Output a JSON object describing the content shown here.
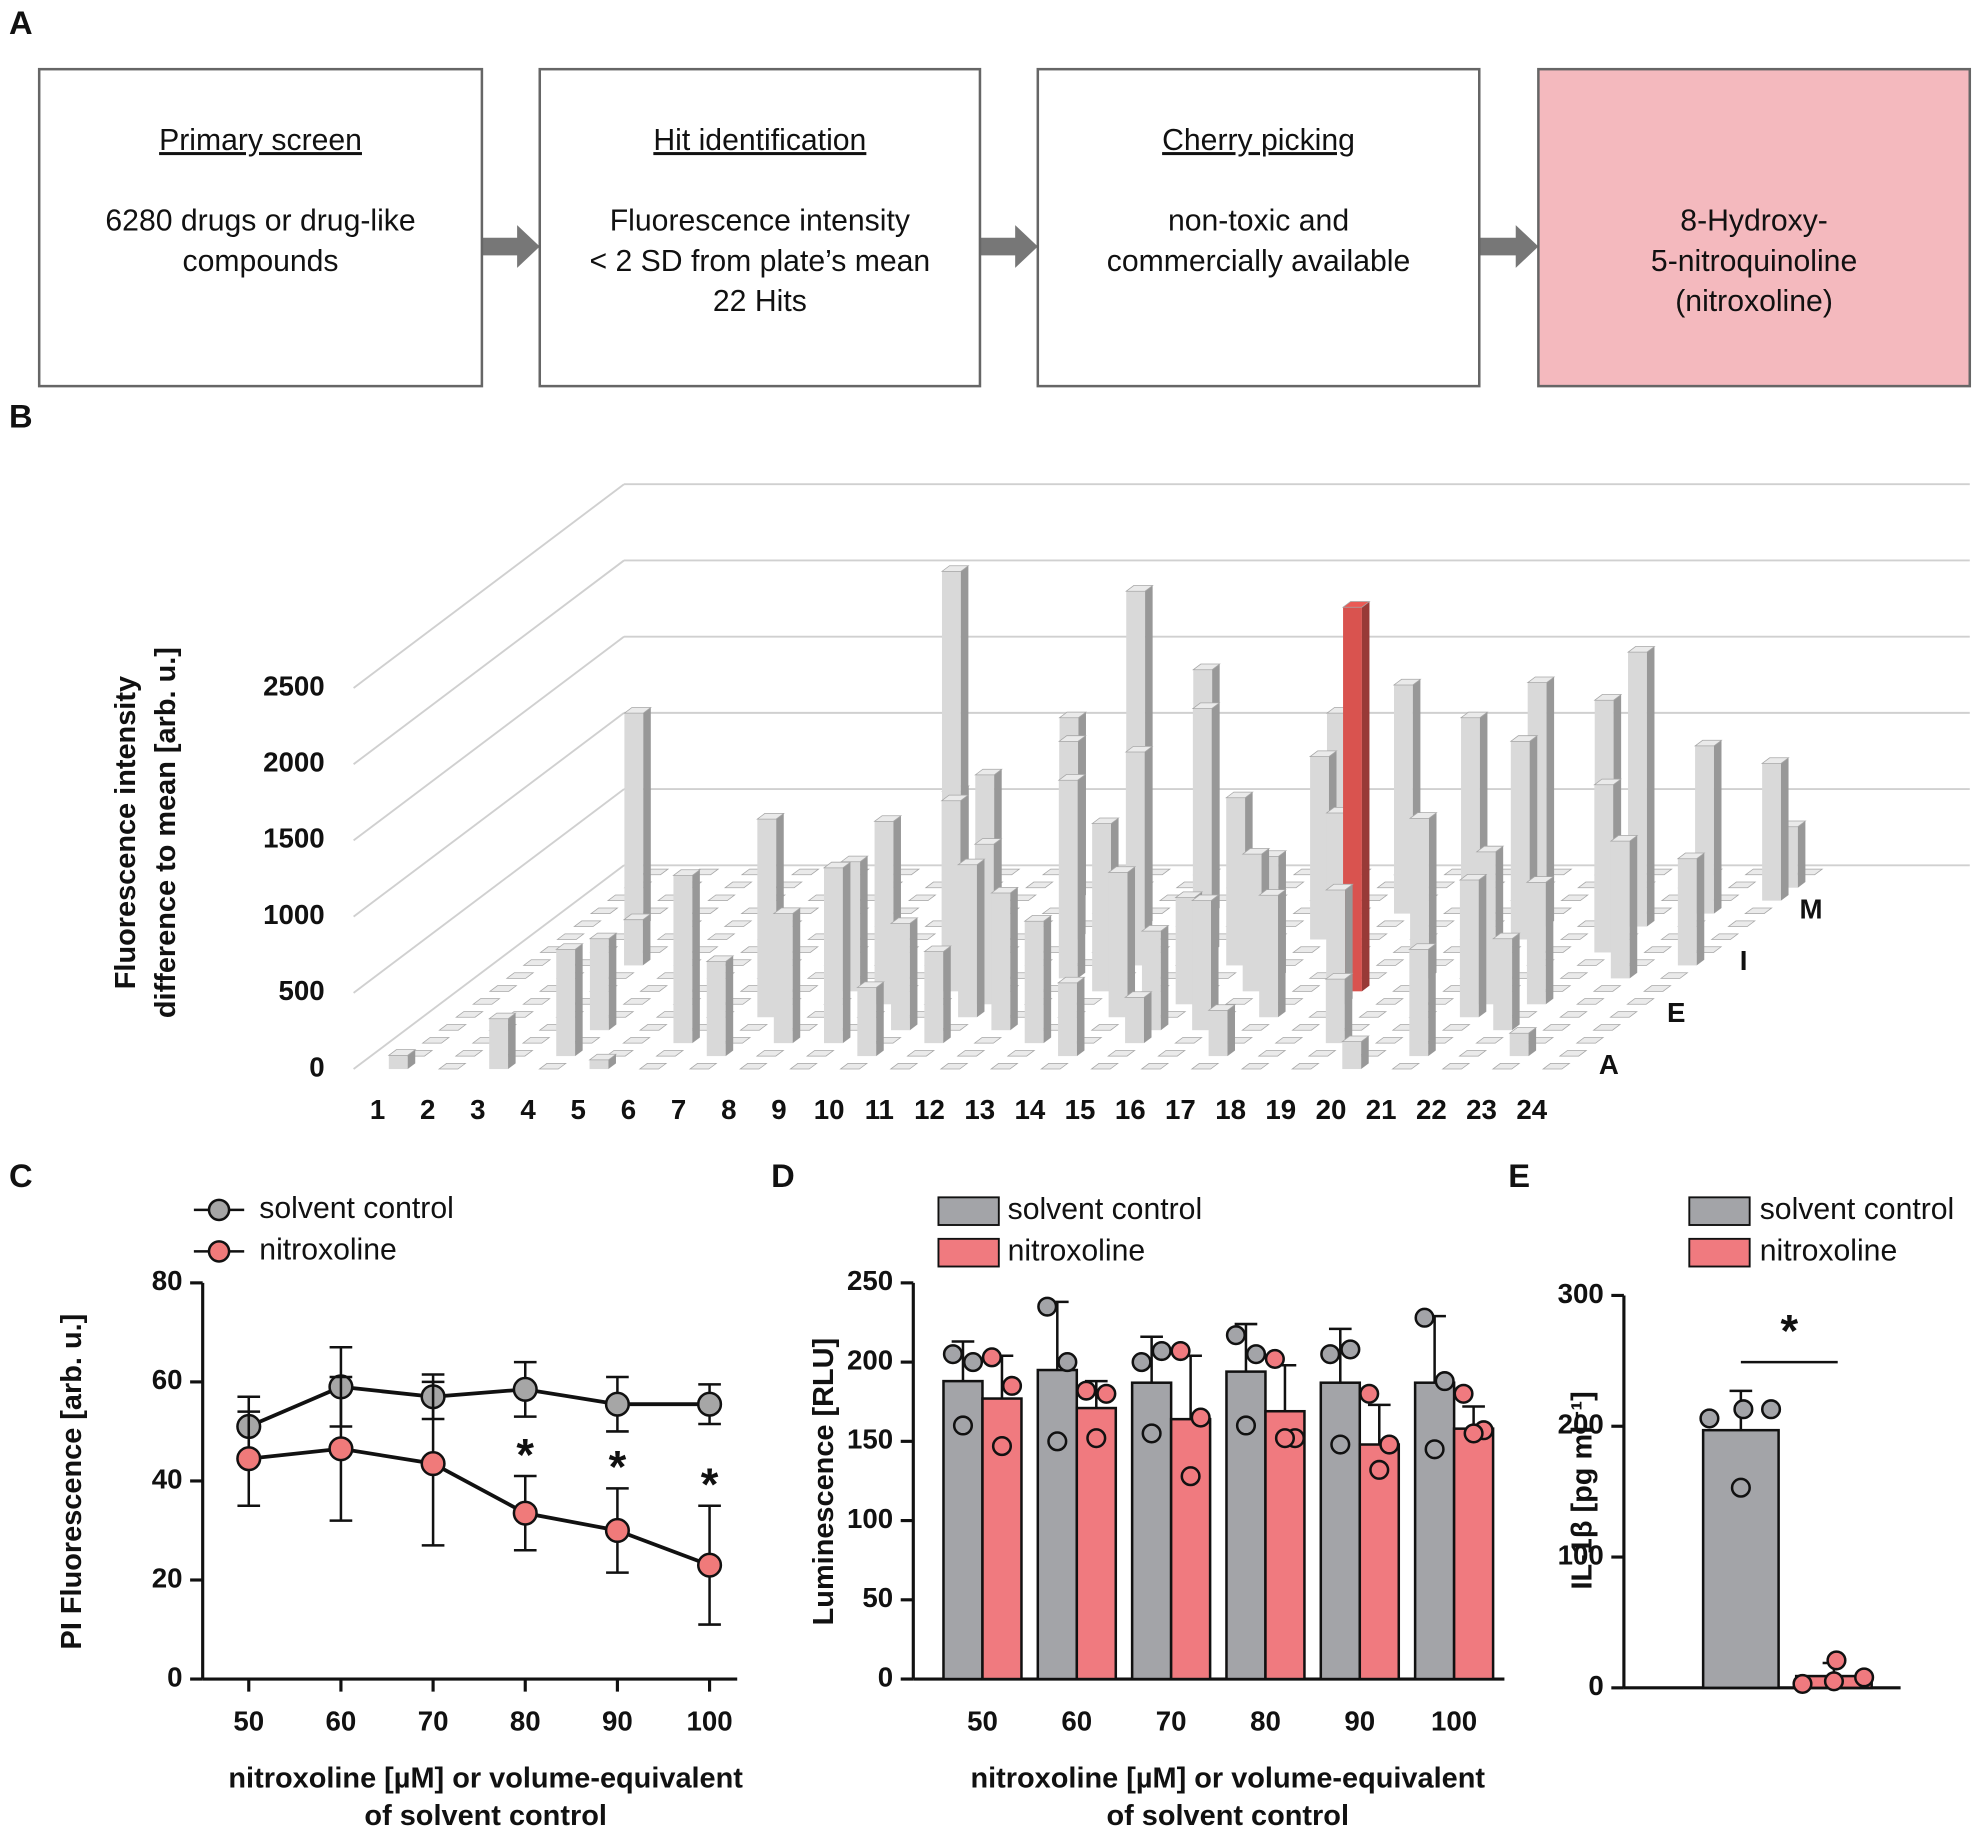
{
  "panel_a": {
    "label": "A",
    "steps": [
      {
        "title": "Primary screen",
        "lines": [
          "6280 drugs or drug-like",
          "compounds"
        ],
        "color": "#ffffff"
      },
      {
        "title": "Hit identification",
        "lines": [
          "Fluorescence intensity",
          "< 2 SD from plate’s mean",
          "22 Hits"
        ],
        "color": "#ffffff"
      },
      {
        "title": "Cherry picking",
        "lines": [
          "non-toxic and",
          "commercially available"
        ],
        "color": "#ffffff"
      },
      {
        "lines": [
          "8-Hydroxy-",
          "5-nitroquinoline",
          "(nitroxoline)"
        ],
        "color": "#f4b9be"
      }
    ]
  },
  "chart_data": [
    {
      "type": "bar3d",
      "panel": "B",
      "y_label": [
        "Fluorescence intensity",
        "difference to mean [arb. u.]"
      ],
      "categories": [
        "1",
        "2",
        "3",
        "4",
        "5",
        "6",
        "7",
        "8",
        "9",
        "10",
        "11",
        "12",
        "13",
        "14",
        "15",
        "16",
        "17",
        "18",
        "19",
        "20",
        "21",
        "22",
        "23",
        "24"
      ],
      "rows": [
        "A",
        null,
        null,
        null,
        "E",
        null,
        null,
        null,
        "I",
        null,
        null,
        null,
        "M",
        null,
        null,
        null
      ],
      "values": [
        [
          90,
          0,
          330,
          0,
          60,
          0,
          0,
          0,
          0,
          0,
          0,
          0,
          0,
          0,
          0,
          0,
          0,
          0,
          0,
          180,
          0,
          0,
          0,
          0
        ],
        [
          0,
          0,
          0,
          700,
          0,
          0,
          620,
          0,
          0,
          450,
          0,
          0,
          0,
          480,
          0,
          0,
          300,
          0,
          0,
          0,
          700,
          0,
          150,
          0
        ],
        [
          0,
          0,
          0,
          0,
          0,
          1100,
          0,
          850,
          1150,
          0,
          600,
          0,
          800,
          0,
          300,
          0,
          0,
          0,
          420,
          0,
          0,
          0,
          0,
          0
        ],
        [
          0,
          0,
          0,
          600,
          0,
          0,
          0,
          0,
          0,
          700,
          0,
          900,
          0,
          0,
          650,
          850,
          0,
          0,
          0,
          0,
          0,
          600,
          0,
          0
        ],
        [
          0,
          0,
          0,
          0,
          0,
          0,
          1300,
          0,
          0,
          0,
          1000,
          0,
          0,
          950,
          0,
          0,
          800,
          0,
          0,
          0,
          900,
          0,
          0,
          0
        ],
        [
          0,
          0,
          0,
          0,
          0,
          0,
          0,
          0,
          1200,
          0,
          1050,
          0,
          0,
          0,
          700,
          0,
          0,
          750,
          0,
          0,
          1000,
          800,
          0,
          0
        ],
        [
          0,
          0,
          0,
          0,
          0,
          0,
          0,
          850,
          0,
          1250,
          0,
          0,
          1100,
          0,
          0,
          900,
          0,
          2520,
          0,
          0,
          0,
          0,
          0,
          0
        ],
        [
          0,
          0,
          0,
          0,
          0,
          0,
          0,
          0,
          0,
          0,
          0,
          1300,
          0,
          0,
          0,
          800,
          0,
          0,
          1050,
          0,
          0,
          0,
          900,
          0
        ],
        [
          0,
          0,
          300,
          0,
          0,
          0,
          0,
          0,
          0,
          1250,
          0,
          0,
          1400,
          0,
          1100,
          0,
          1000,
          0,
          0,
          0,
          0,
          0,
          0,
          700
        ],
        [
          0,
          0,
          0,
          0,
          0,
          0,
          0,
          0,
          2500,
          0,
          0,
          0,
          0,
          1600,
          0,
          0,
          0,
          0,
          0,
          0,
          0,
          1100,
          0,
          0
        ],
        [
          0,
          0,
          0,
          0,
          0,
          0,
          0,
          0,
          0,
          0,
          1300,
          0,
          0,
          0,
          0,
          1200,
          0,
          0,
          0,
          1300,
          0,
          0,
          0,
          0
        ],
        [
          0,
          1400,
          0,
          0,
          0,
          0,
          0,
          0,
          0,
          0,
          0,
          2200,
          0,
          0,
          0,
          1400,
          0,
          0,
          0,
          1600,
          0,
          1800,
          0,
          0
        ],
        [
          0,
          0,
          0,
          0,
          0,
          0,
          0,
          800,
          0,
          0,
          0,
          0,
          1600,
          0,
          0,
          0,
          1500,
          0,
          0,
          0,
          1400,
          0,
          1100,
          0
        ],
        [
          0,
          0,
          0,
          0,
          0,
          0,
          0,
          0,
          0,
          1200,
          0,
          0,
          0,
          0,
          0,
          0,
          0,
          1200,
          0,
          0,
          0,
          0,
          0,
          900
        ],
        [
          0,
          0,
          0,
          0,
          0,
          0,
          0,
          0,
          0,
          0,
          0,
          0,
          0,
          0,
          0,
          0,
          0,
          0,
          0,
          0,
          0,
          0,
          0,
          400
        ],
        [
          0,
          0,
          0,
          0,
          0,
          0,
          0,
          0,
          0,
          0,
          0,
          0,
          0,
          0,
          0,
          0,
          0,
          0,
          0,
          0,
          0,
          0,
          0,
          0
        ]
      ],
      "color": "#d9d9d9",
      "highlight": {
        "row": 6,
        "column": 17,
        "color": "#d9534f"
      },
      "ylim": [
        0,
        2500
      ],
      "yticks": [
        0,
        500,
        1000,
        1500,
        2000,
        2500
      ]
    },
    {
      "type": "line",
      "panel": "C",
      "y_label": "PI Fluorescence [arb. u.]",
      "x_label": [
        "nitroxoline [µM] or volume-equivalent",
        "of solvent control"
      ],
      "x": [
        50,
        60,
        70,
        80,
        90,
        100
      ],
      "xlim": [
        45,
        103
      ],
      "xticks": [
        50,
        60,
        70,
        80,
        90,
        100
      ],
      "ylim": [
        0,
        80
      ],
      "yticks": [
        0,
        20,
        40,
        60,
        80
      ],
      "series": [
        {
          "name": "solvent control",
          "color": "#a6a6a6",
          "values": [
            51,
            59,
            57,
            58.5,
            55.5,
            55.5
          ],
          "errors": [
            6,
            8,
            4.5,
            5.5,
            5.5,
            4
          ]
        },
        {
          "name": "nitroxoline",
          "color": "#f07a7a",
          "values": [
            44.5,
            46.5,
            43.5,
            33.5,
            30,
            23
          ],
          "errors": [
            9.5,
            14.5,
            16.5,
            7.5,
            8.5,
            12
          ]
        }
      ],
      "annotations": [
        {
          "x": 80,
          "text": "*"
        },
        {
          "x": 90,
          "text": "*"
        },
        {
          "x": 100,
          "text": "*"
        }
      ]
    },
    {
      "type": "bar",
      "panel": "D",
      "y_label": "Luminescence [RLU]",
      "x_label": [
        "nitroxoline [µM] or volume-equivalent",
        "of solvent control"
      ],
      "categories": [
        "50",
        "60",
        "70",
        "80",
        "90",
        "100"
      ],
      "ylim": [
        0,
        250
      ],
      "yticks": [
        0,
        50,
        100,
        150,
        200,
        250
      ],
      "series": [
        {
          "name": "solvent control",
          "color": "#a3a4a8",
          "values": [
            188,
            195,
            187,
            194,
            187,
            187
          ],
          "errors": [
            25,
            43,
            29,
            30,
            34,
            42
          ],
          "points": [
            [
              205,
              200,
              160
            ],
            [
              235,
              200,
              150
            ],
            [
              200,
              207,
              155
            ],
            [
              217,
              205,
              160
            ],
            [
              205,
              208,
              148
            ],
            [
              228,
              188,
              145
            ]
          ]
        },
        {
          "name": "nitroxoline",
          "color": "#f07a7f",
          "values": [
            177,
            171,
            164,
            169,
            148,
            158
          ],
          "errors": [
            27,
            17,
            40,
            29,
            25,
            14
          ],
          "points": [
            [
              203,
              185,
              147
            ],
            [
              182,
              180,
              152
            ],
            [
              207,
              165,
              128
            ],
            [
              202,
              152,
              152
            ],
            [
              180,
              148,
              132
            ],
            [
              180,
              157,
              155
            ]
          ]
        }
      ]
    },
    {
      "type": "bar",
      "panel": "E",
      "y_label": "IL-1β [pg ml⁻¹]",
      "ylim": [
        0,
        300
      ],
      "yticks": [
        0,
        100,
        200,
        300
      ],
      "series": [
        {
          "name": "solvent control",
          "color": "#a3a4a8",
          "values": [
            197
          ],
          "errors": [
            30
          ],
          "points": [
            [
              206,
              213,
              213,
              153
            ]
          ]
        },
        {
          "name": "nitroxoline",
          "color": "#f07a7f",
          "values": [
            9
          ],
          "errors": [
            10
          ],
          "points": [
            [
              3,
              21,
              8,
              5
            ]
          ]
        }
      ],
      "annotations": [
        {
          "text": "*"
        }
      ]
    }
  ]
}
